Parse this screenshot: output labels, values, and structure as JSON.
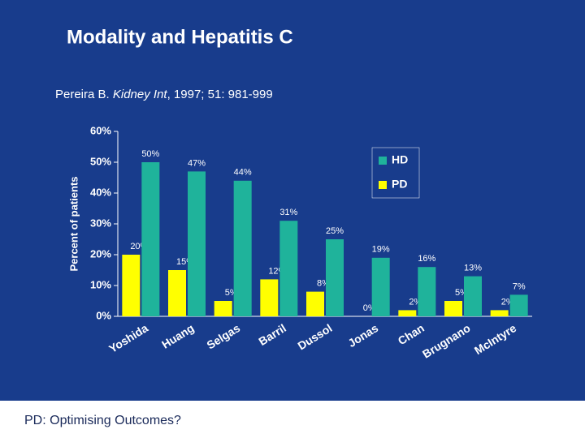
{
  "slide": {
    "title": "Modality and Hepatitis C",
    "citation": [
      "Pereira B. ",
      "Kidney Int",
      ", 1997; 51: 981-999"
    ],
    "footer": "PD: Optimising Outcomes?"
  },
  "chart_data": {
    "type": "bar",
    "y_label": "Percent of patients",
    "categories": [
      "Yoshida",
      "Huang",
      "Selgas",
      "Barril",
      "Dussol",
      "Jonas",
      "Chan",
      "Brugnano",
      "McIntyre"
    ],
    "series": [
      {
        "name": "PD",
        "color": "#ffff00",
        "values": [
          20,
          15,
          5,
          12,
          8,
          0,
          2,
          5,
          2
        ],
        "value_labels": [
          "20%",
          "15%",
          "5%",
          "12%",
          "8%",
          "0%",
          "2%",
          "5%",
          "2%"
        ]
      },
      {
        "name": "HD",
        "color": "#1fb39b",
        "values": [
          50,
          47,
          44,
          31,
          25,
          19,
          16,
          13,
          7
        ],
        "value_labels": [
          "50%",
          "47%",
          "44%",
          "31%",
          "25%",
          "19%",
          "16%",
          "13%",
          "7%"
        ]
      }
    ],
    "ylim": [
      0,
      60
    ],
    "yticks": [
      {
        "value": 0,
        "label": "0%"
      },
      {
        "value": 10,
        "label": "10%"
      },
      {
        "value": 20,
        "label": "20%"
      },
      {
        "value": 30,
        "label": "30%"
      },
      {
        "value": 40,
        "label": "40%"
      },
      {
        "value": 50,
        "label": "50%"
      },
      {
        "value": 60,
        "label": "60%"
      }
    ],
    "legend": "top-right"
  }
}
